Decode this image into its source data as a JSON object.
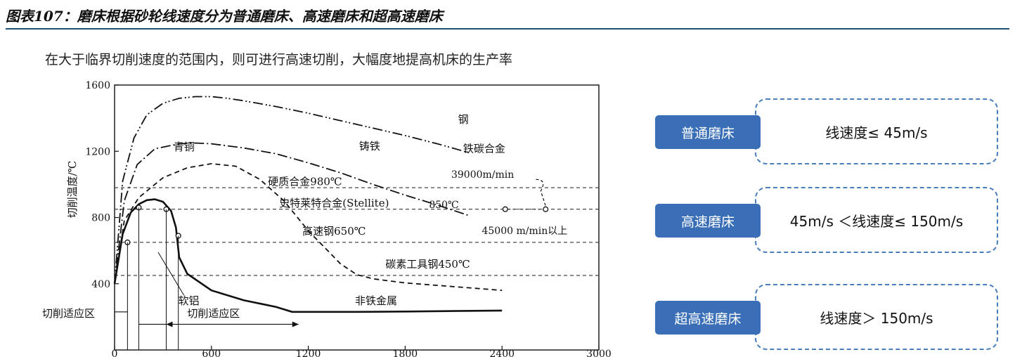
{
  "figure_title": "图表107：磨床根据砂轮线速度分为普通磨床、高速磨床和超高速磨床",
  "subtitle": "在大于临界切削速度的范围内，则可进行高速切削，大幅度地提高机床的生产率",
  "chart_data": {
    "type": "line",
    "ylabel": "切削温度/℃",
    "xlabel": "",
    "xlim": [
      0,
      3000
    ],
    "ylim": [
      0,
      1600
    ],
    "x_ticks": [
      "0",
      "600",
      "1200",
      "1800",
      "2400",
      "3000"
    ],
    "y_ticks": [
      "400",
      "800",
      "1200",
      "1600"
    ],
    "series": [
      {
        "name": "钢",
        "style": "dash-dot-dot",
        "x": [
          0,
          50,
          120,
          200,
          300,
          400,
          500,
          600,
          700,
          800,
          1000,
          1200,
          1400,
          1600,
          1800,
          2000,
          2200
        ],
        "y": [
          400,
          1020,
          1280,
          1420,
          1490,
          1520,
          1530,
          1530,
          1520,
          1505,
          1470,
          1430,
          1385,
          1340,
          1295,
          1245,
          1190
        ]
      },
      {
        "name": "铸铁",
        "style": "dash-dot",
        "x": [
          0,
          60,
          140,
          250,
          400,
          500,
          600,
          800,
          1000,
          1200,
          1400,
          1600,
          1800,
          2000,
          2200
        ],
        "y": [
          400,
          900,
          1120,
          1215,
          1245,
          1250,
          1245,
          1220,
          1185,
          1130,
          1070,
          1000,
          935,
          875,
          810
        ]
      },
      {
        "name": "硬质合金980℃",
        "style": "dashed",
        "x": [
          0,
          60,
          150,
          300,
          450,
          600,
          750,
          900,
          1050,
          1200,
          1300,
          1400,
          1500,
          1600,
          1800,
          2000,
          2200,
          2400
        ],
        "y": [
          400,
          780,
          920,
          1040,
          1100,
          1125,
          1110,
          1030,
          900,
          720,
          620,
          520,
          455,
          430,
          405,
          390,
          375,
          360
        ]
      },
      {
        "name": "软铝",
        "style": "solid",
        "x": [
          0,
          50,
          100,
          150,
          200,
          250,
          300,
          350,
          380,
          400,
          450,
          600,
          800,
          1000,
          1100,
          1200,
          1500,
          1800,
          2100,
          2400
        ],
        "y": [
          400,
          700,
          830,
          880,
          905,
          910,
          895,
          840,
          740,
          560,
          460,
          360,
          300,
          260,
          230,
          230,
          230,
          232,
          235,
          238
        ]
      }
    ],
    "reference_lines": [
      {
        "y": 980,
        "label": "硬质合金980℃"
      },
      {
        "y": 850,
        "label": "史特莱特合金(Stellite)"
      },
      {
        "y": 650,
        "label": "高速钢650℃"
      },
      {
        "y": 450,
        "label": "碳素工具钢450℃"
      }
    ],
    "annotations": {
      "steel": "钢",
      "bronze": "青铜",
      "cast_iron": "铸铁",
      "iron_carbon": "铁碳合金",
      "speed_39000": "39000m/min",
      "temp_850": "850℃",
      "speed_45000": "45000 m/min以上",
      "soft_al": "软铝",
      "nonferrous": "非铁金属",
      "cut_zone_left": "切削适应区",
      "cut_zone_right": "切削适应区"
    }
  },
  "classification": [
    {
      "label": "普通磨床",
      "speed": "线速度≤ 45m/s"
    },
    {
      "label": "高速磨床",
      "speed": "45m/s ＜线速度≤ 150m/s"
    },
    {
      "label": "超高速磨床",
      "speed": "线速度＞ 150m/s"
    }
  ],
  "colors": {
    "accent": "#3a6fb7",
    "dash_border": "#4a7ebb",
    "rule": "#1f4e79"
  }
}
